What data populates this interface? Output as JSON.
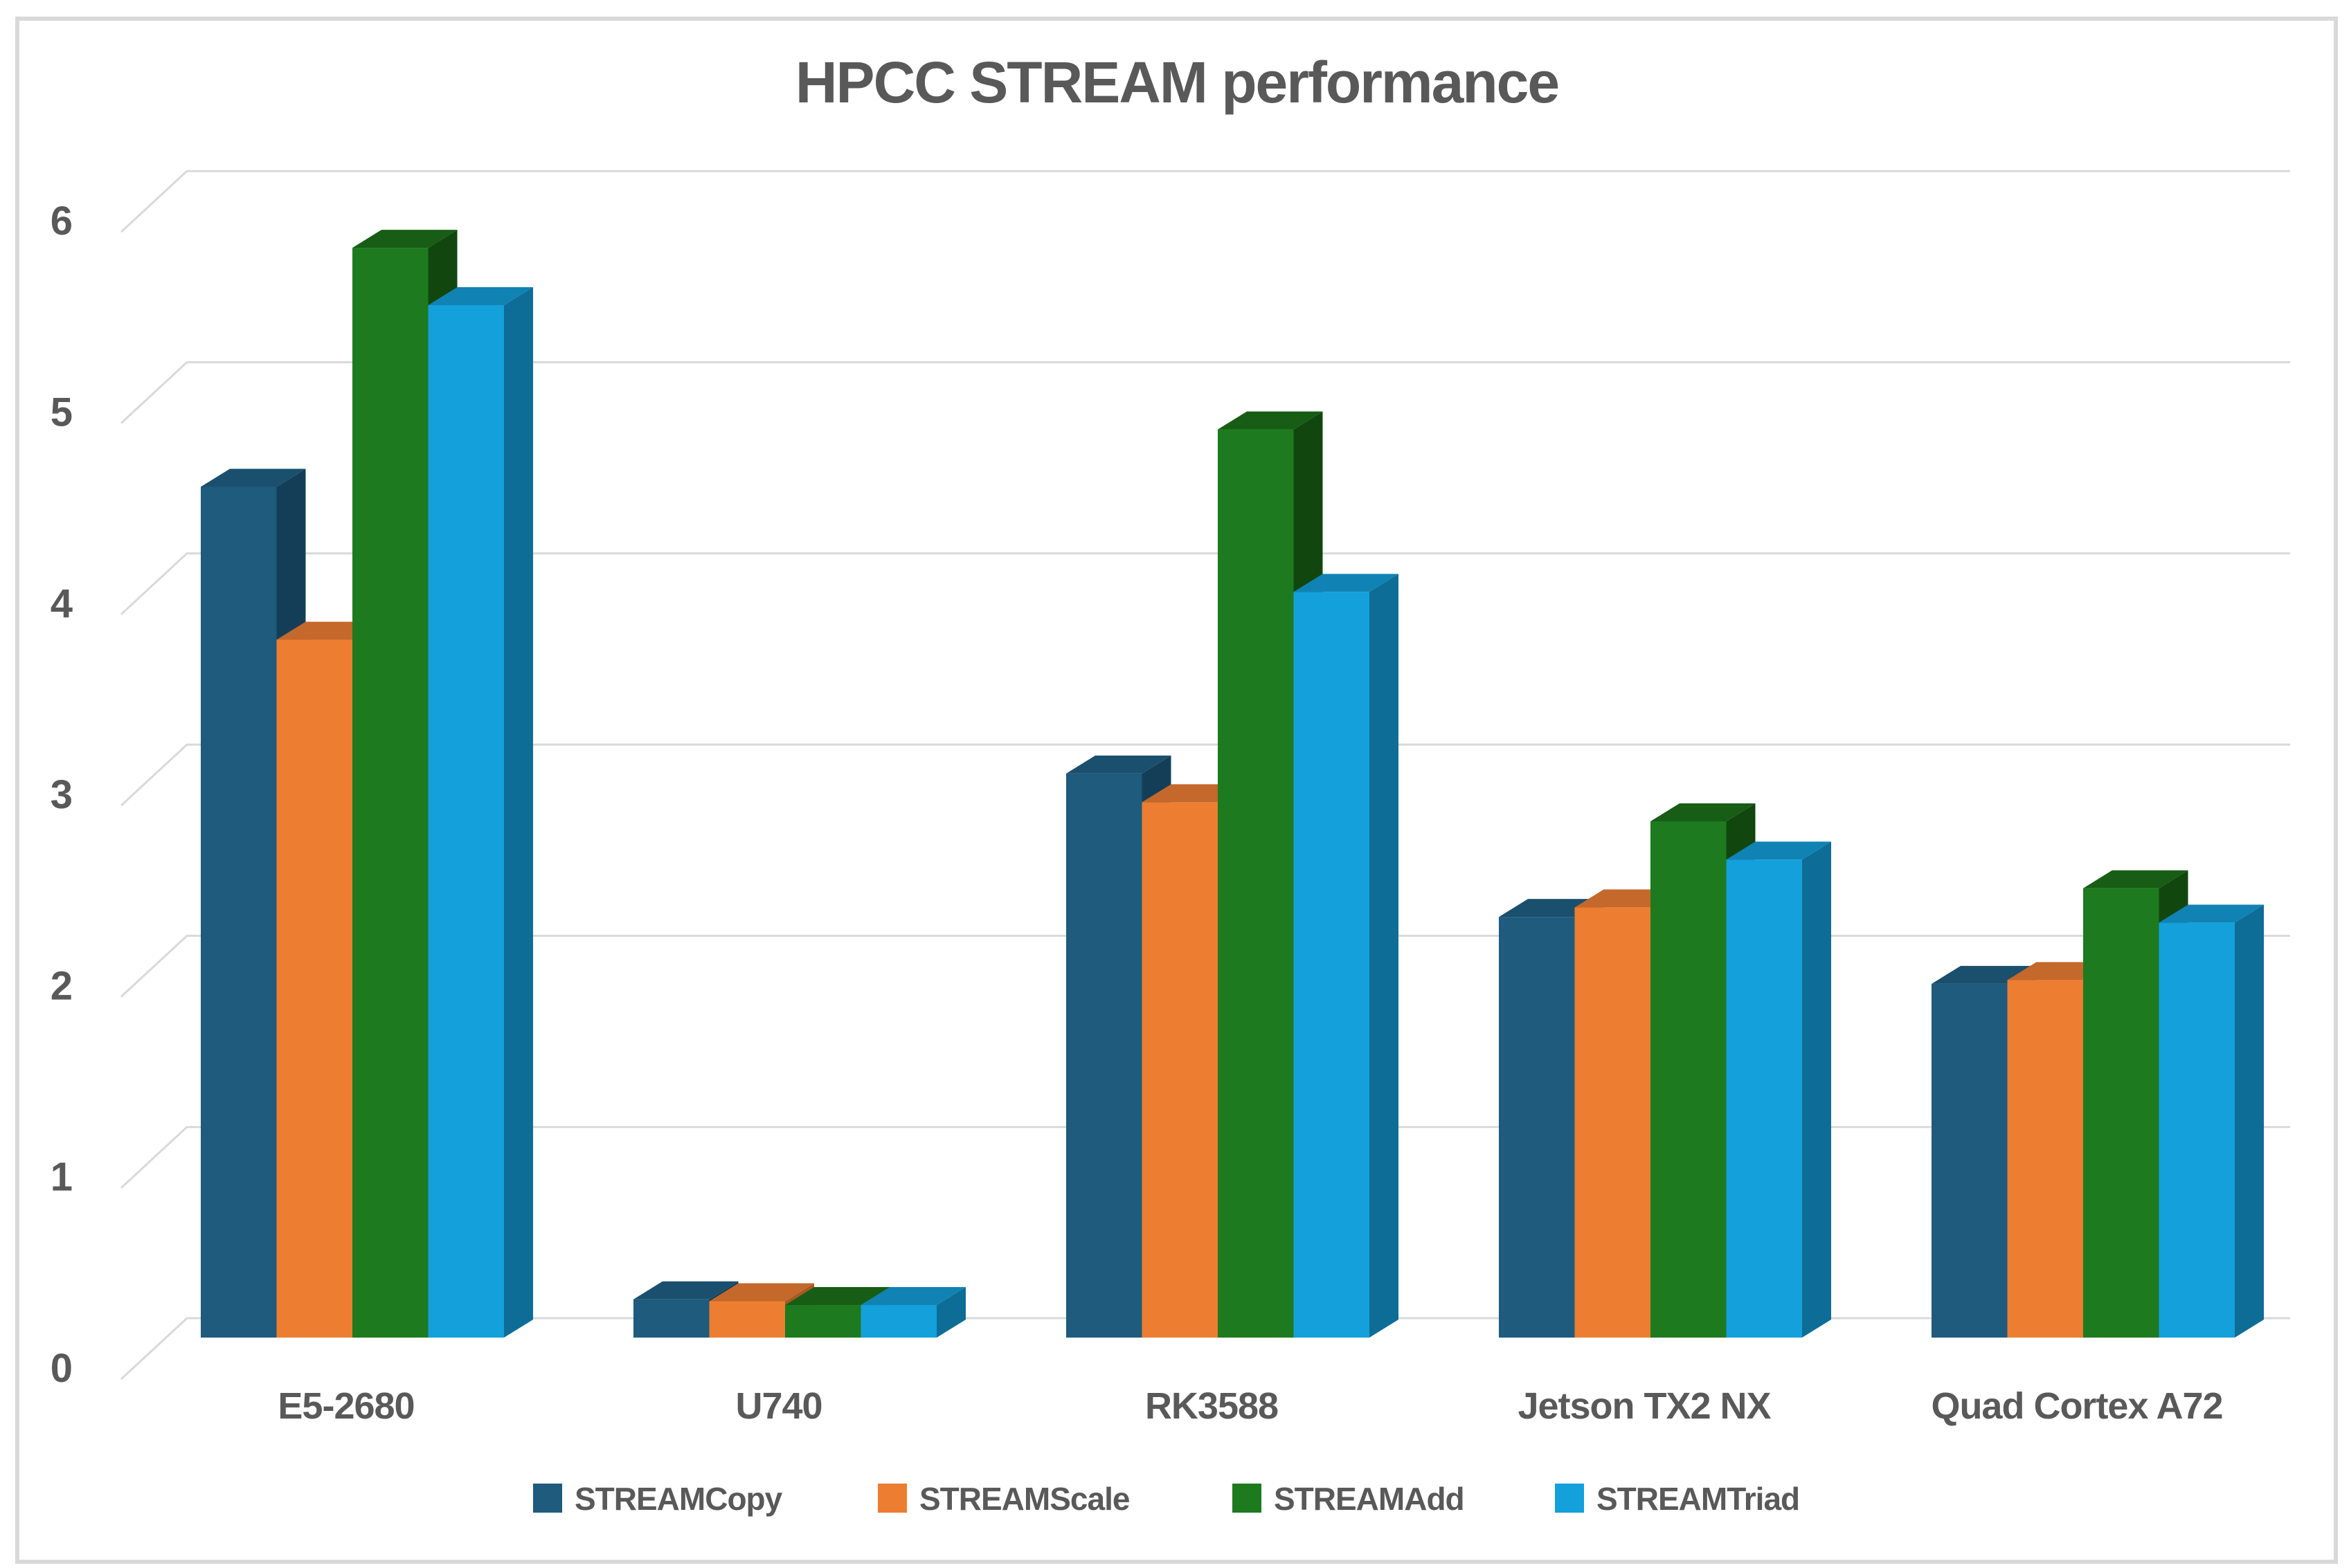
{
  "chart_data": {
    "type": "bar",
    "style": "3d-clustered-column",
    "title": "HPCC STREAM performance",
    "categories": [
      "E5-2680",
      "U740",
      "RK3588",
      "Jetson TX2 NX",
      "Quad Cortex A72"
    ],
    "series": [
      {
        "name": "STREAMCopy",
        "values": [
          4.45,
          0.2,
          2.95,
          2.2,
          1.85
        ],
        "color_front": "#1e5b7d",
        "color_side": "#143e57",
        "color_top": "#1a506e"
      },
      {
        "name": "STREAMScale",
        "values": [
          3.65,
          0.19,
          2.8,
          2.25,
          1.87
        ],
        "color_front": "#ed7d31",
        "color_side": "#a85a23",
        "color_top": "#c4682b"
      },
      {
        "name": "STREAMAdd",
        "values": [
          5.7,
          0.17,
          4.75,
          2.7,
          2.35
        ],
        "color_front": "#1e7a1e",
        "color_side": "#11470f",
        "color_top": "#175d15"
      },
      {
        "name": "STREAMTriad",
        "values": [
          5.4,
          0.17,
          3.9,
          2.5,
          2.17
        ],
        "color_front": "#14a0db",
        "color_side": "#0d6d96",
        "color_top": "#1083b4"
      }
    ],
    "xlabel": "",
    "ylabel": "",
    "ylim": [
      0,
      6
    ],
    "yticks": [
      0,
      1,
      2,
      3,
      4,
      5,
      6
    ],
    "grid": true,
    "legend_position": "bottom",
    "text_color": "#595959",
    "gridline_color": "#d9d9d9",
    "background_color": "#ffffff",
    "frame_border_color": "#d9d9d9"
  }
}
